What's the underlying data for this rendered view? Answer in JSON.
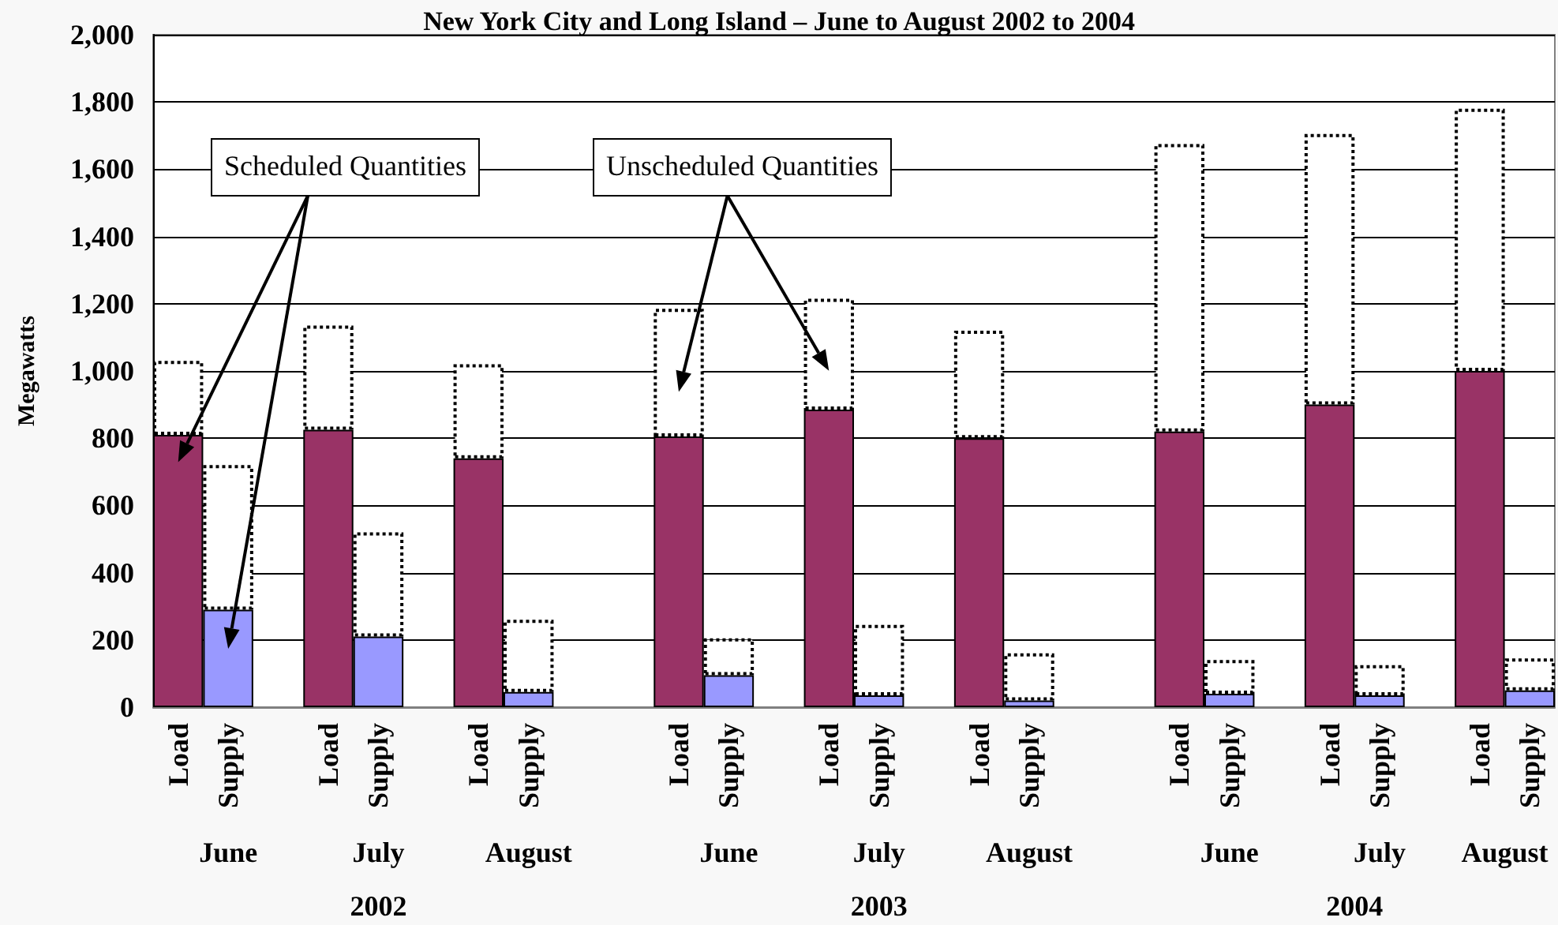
{
  "chart_data": {
    "type": "bar",
    "title": "New York City and Long Island – June to August 2002 to 2004",
    "ylabel": "Megawatts",
    "categories": [
      "Load",
      "Supply",
      null,
      "Load",
      "Supply",
      null,
      "Load",
      "Supply",
      null,
      null,
      "Load",
      "Supply",
      null,
      "Load",
      "Supply",
      null,
      "Load",
      "Supply",
      null,
      null,
      "Load",
      "Supply",
      null,
      "Load",
      "Supply",
      null,
      "Load",
      "Supply"
    ],
    "stacked": true,
    "series": [
      {
        "colors": [
          "#993366",
          "#9999ff",
          null,
          "#993366",
          "#9999ff",
          null,
          "#993366",
          "#9999ff",
          null,
          null,
          "#993366",
          "#9999ff",
          null,
          "#993366",
          "#9999ff",
          null,
          "#993366",
          "#9999ff",
          null,
          null,
          "#993366",
          "#9999ff",
          null,
          "#993366",
          "#9999ff",
          null,
          "#993366",
          "#9999ff"
        ],
        "values": [
          810,
          290,
          null,
          825,
          210,
          null,
          740,
          45,
          null,
          null,
          805,
          95,
          null,
          885,
          35,
          null,
          800,
          20,
          null,
          null,
          820,
          40,
          null,
          900,
          35,
          null,
          1000,
          50
        ]
      },
      {
        "color": "#ffffff",
        "line_style": "dotted",
        "values": [
          220,
          430,
          null,
          310,
          310,
          null,
          280,
          215,
          null,
          null,
          380,
          110,
          null,
          330,
          210,
          null,
          320,
          140,
          null,
          null,
          855,
          100,
          null,
          805,
          90,
          null,
          780,
          95
        ]
      }
    ],
    "ylim": [
      0,
      2000
    ],
    "yticks": [
      0,
      200,
      400,
      600,
      800,
      {
        "value": 1000,
        "label": "1,000"
      },
      {
        "value": 1200,
        "label": "1,200"
      },
      {
        "value": 1400,
        "label": "1,400"
      },
      {
        "value": 1600,
        "label": "1,600"
      },
      {
        "value": 1800,
        "label": "1,800"
      },
      {
        "value": 2000,
        "label": "2,000"
      }
    ],
    "grid": "y",
    "annotations": [
      "Scheduled Quantities",
      "Unscheduled Quantities",
      "June",
      "July",
      "August",
      "June",
      "July",
      "August",
      "June",
      "July",
      "August",
      "2002",
      "2003",
      "2004"
    ]
  }
}
